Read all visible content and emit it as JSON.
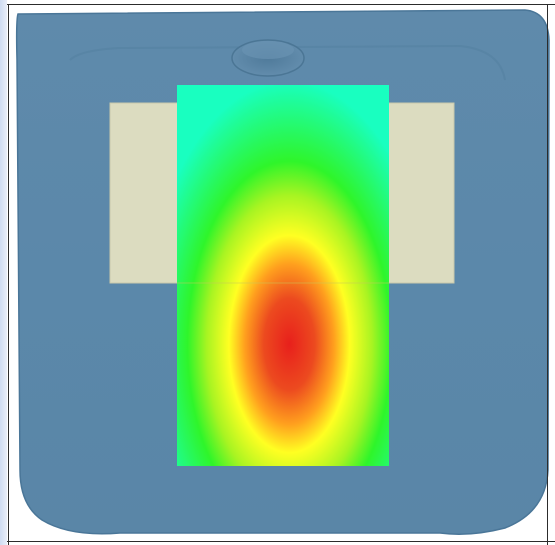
{
  "viewer": {
    "background_color": "#ffffff",
    "frame_color": "#2c2c2c"
  },
  "model": {
    "shell_color": "#5b88aa",
    "shell_edge_color": "#4a7698",
    "panel_color": "#dcdcc0"
  },
  "heatmap": {
    "colors": [
      "#19ffc0",
      "#2ff52a",
      "#ffff22",
      "#ff9f1e",
      "#e8201c"
    ],
    "hotspot": {
      "rx": 0.53,
      "ry": 0.59
    }
  }
}
